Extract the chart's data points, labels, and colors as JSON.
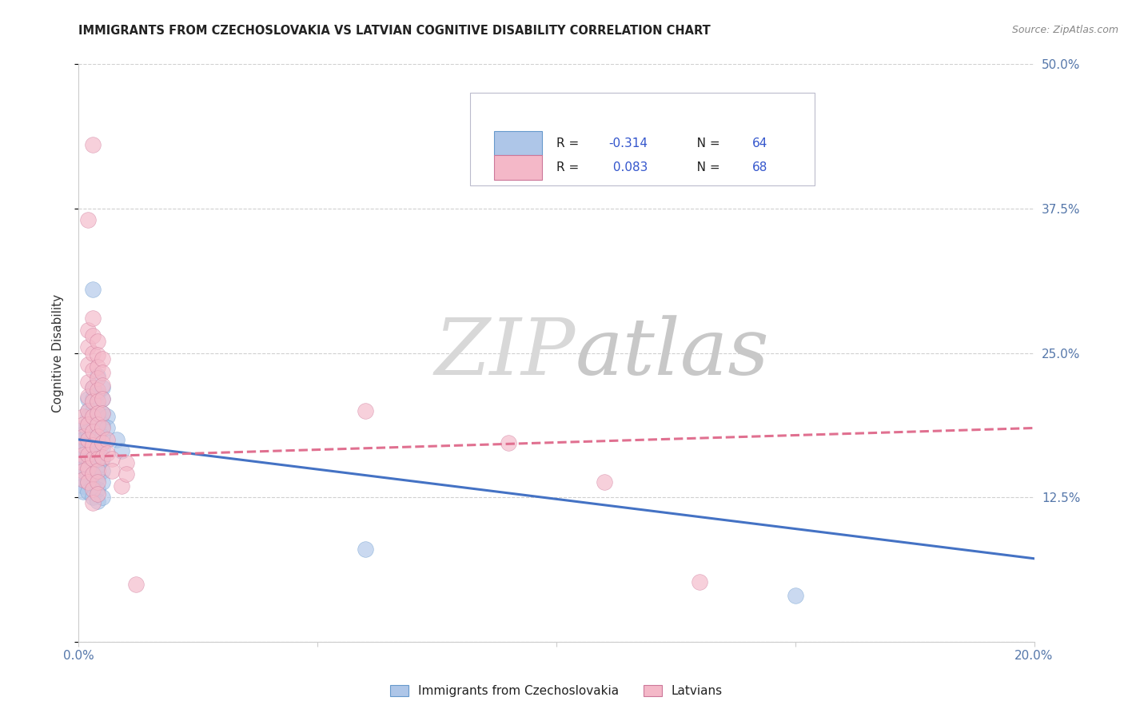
{
  "title": "IMMIGRANTS FROM CZECHOSLOVAKIA VS LATVIAN COGNITIVE DISABILITY CORRELATION CHART",
  "source": "Source: ZipAtlas.com",
  "ylabel": "Cognitive Disability",
  "xmin": 0.0,
  "xmax": 0.2,
  "ymin": 0.0,
  "ymax": 0.5,
  "color_blue": "#aec6e8",
  "color_blue_edge": "#6699cc",
  "color_pink": "#f4b8c8",
  "color_pink_edge": "#cc7799",
  "line_blue": "#4472c4",
  "line_pink": "#e07090",
  "r_color": "#3355cc",
  "background_color": "#ffffff",
  "grid_color": "#d0d0d0",
  "blue_line_x": [
    0.0,
    0.2
  ],
  "blue_line_y": [
    0.175,
    0.072
  ],
  "pink_line_x": [
    0.0,
    0.2
  ],
  "pink_line_y": [
    0.16,
    0.185
  ],
  "blue_scatter": [
    [
      0.001,
      0.185
    ],
    [
      0.001,
      0.18
    ],
    [
      0.001,
      0.175
    ],
    [
      0.001,
      0.17
    ],
    [
      0.001,
      0.165
    ],
    [
      0.001,
      0.16
    ],
    [
      0.001,
      0.155
    ],
    [
      0.001,
      0.15
    ],
    [
      0.001,
      0.145
    ],
    [
      0.001,
      0.14
    ],
    [
      0.001,
      0.135
    ],
    [
      0.001,
      0.13
    ],
    [
      0.002,
      0.21
    ],
    [
      0.002,
      0.2
    ],
    [
      0.002,
      0.195
    ],
    [
      0.002,
      0.188
    ],
    [
      0.002,
      0.182
    ],
    [
      0.002,
      0.175
    ],
    [
      0.002,
      0.168
    ],
    [
      0.002,
      0.16
    ],
    [
      0.002,
      0.153
    ],
    [
      0.002,
      0.145
    ],
    [
      0.002,
      0.138
    ],
    [
      0.002,
      0.13
    ],
    [
      0.003,
      0.305
    ],
    [
      0.003,
      0.22
    ],
    [
      0.003,
      0.21
    ],
    [
      0.003,
      0.2
    ],
    [
      0.003,
      0.192
    ],
    [
      0.003,
      0.183
    ],
    [
      0.003,
      0.175
    ],
    [
      0.003,
      0.165
    ],
    [
      0.003,
      0.155
    ],
    [
      0.003,
      0.145
    ],
    [
      0.003,
      0.135
    ],
    [
      0.003,
      0.125
    ],
    [
      0.004,
      0.23
    ],
    [
      0.004,
      0.215
    ],
    [
      0.004,
      0.205
    ],
    [
      0.004,
      0.195
    ],
    [
      0.004,
      0.185
    ],
    [
      0.004,
      0.178
    ],
    [
      0.004,
      0.17
    ],
    [
      0.004,
      0.162
    ],
    [
      0.004,
      0.152
    ],
    [
      0.004,
      0.142
    ],
    [
      0.004,
      0.132
    ],
    [
      0.004,
      0.122
    ],
    [
      0.005,
      0.22
    ],
    [
      0.005,
      0.21
    ],
    [
      0.005,
      0.198
    ],
    [
      0.005,
      0.188
    ],
    [
      0.005,
      0.178
    ],
    [
      0.005,
      0.168
    ],
    [
      0.005,
      0.158
    ],
    [
      0.005,
      0.148
    ],
    [
      0.005,
      0.138
    ],
    [
      0.005,
      0.125
    ],
    [
      0.006,
      0.195
    ],
    [
      0.006,
      0.185
    ],
    [
      0.008,
      0.175
    ],
    [
      0.009,
      0.165
    ],
    [
      0.06,
      0.08
    ],
    [
      0.15,
      0.04
    ]
  ],
  "pink_scatter": [
    [
      0.001,
      0.195
    ],
    [
      0.001,
      0.188
    ],
    [
      0.001,
      0.178
    ],
    [
      0.001,
      0.17
    ],
    [
      0.001,
      0.162
    ],
    [
      0.001,
      0.155
    ],
    [
      0.001,
      0.148
    ],
    [
      0.001,
      0.14
    ],
    [
      0.002,
      0.365
    ],
    [
      0.002,
      0.27
    ],
    [
      0.002,
      0.255
    ],
    [
      0.002,
      0.24
    ],
    [
      0.002,
      0.225
    ],
    [
      0.002,
      0.212
    ],
    [
      0.002,
      0.2
    ],
    [
      0.002,
      0.188
    ],
    [
      0.002,
      0.175
    ],
    [
      0.002,
      0.162
    ],
    [
      0.002,
      0.15
    ],
    [
      0.002,
      0.138
    ],
    [
      0.003,
      0.43
    ],
    [
      0.003,
      0.28
    ],
    [
      0.003,
      0.265
    ],
    [
      0.003,
      0.25
    ],
    [
      0.003,
      0.235
    ],
    [
      0.003,
      0.22
    ],
    [
      0.003,
      0.208
    ],
    [
      0.003,
      0.195
    ],
    [
      0.003,
      0.182
    ],
    [
      0.003,
      0.17
    ],
    [
      0.003,
      0.158
    ],
    [
      0.003,
      0.145
    ],
    [
      0.003,
      0.132
    ],
    [
      0.003,
      0.12
    ],
    [
      0.004,
      0.26
    ],
    [
      0.004,
      0.248
    ],
    [
      0.004,
      0.238
    ],
    [
      0.004,
      0.228
    ],
    [
      0.004,
      0.218
    ],
    [
      0.004,
      0.208
    ],
    [
      0.004,
      0.198
    ],
    [
      0.004,
      0.188
    ],
    [
      0.004,
      0.178
    ],
    [
      0.004,
      0.168
    ],
    [
      0.004,
      0.158
    ],
    [
      0.004,
      0.148
    ],
    [
      0.004,
      0.138
    ],
    [
      0.004,
      0.128
    ],
    [
      0.005,
      0.245
    ],
    [
      0.005,
      0.233
    ],
    [
      0.005,
      0.222
    ],
    [
      0.005,
      0.21
    ],
    [
      0.005,
      0.198
    ],
    [
      0.005,
      0.185
    ],
    [
      0.005,
      0.172
    ],
    [
      0.005,
      0.16
    ],
    [
      0.006,
      0.175
    ],
    [
      0.006,
      0.163
    ],
    [
      0.007,
      0.158
    ],
    [
      0.007,
      0.148
    ],
    [
      0.009,
      0.135
    ],
    [
      0.01,
      0.155
    ],
    [
      0.01,
      0.145
    ],
    [
      0.012,
      0.05
    ],
    [
      0.06,
      0.2
    ],
    [
      0.09,
      0.172
    ],
    [
      0.11,
      0.138
    ],
    [
      0.13,
      0.052
    ]
  ],
  "watermark_text": "ZIPatlas",
  "watermark_zip_color": "#c8c8c8",
  "watermark_atlas_color": "#c0c0c0"
}
